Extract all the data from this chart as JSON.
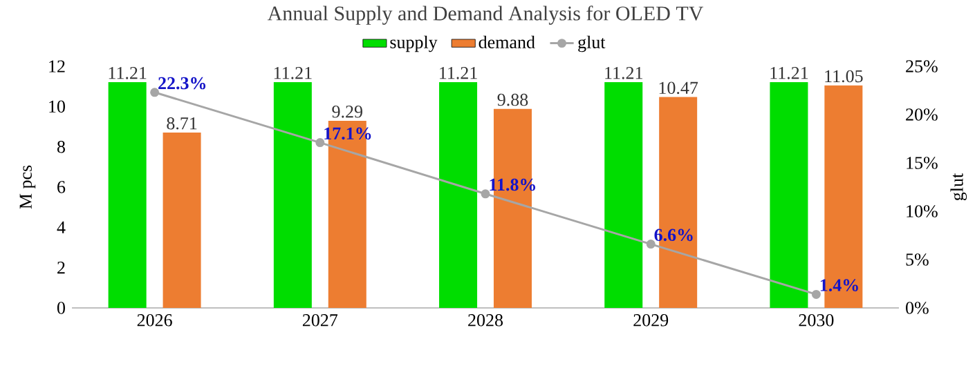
{
  "chart_data": {
    "type": "bar",
    "title": "Annual Supply and Demand Analysis for OLED TV",
    "categories": [
      "2026",
      "2027",
      "2028",
      "2029",
      "2030"
    ],
    "series": [
      {
        "name": "supply",
        "color": "#00dd00",
        "values": [
          11.21,
          11.21,
          11.21,
          11.21,
          11.21
        ],
        "value_labels": [
          "11.21",
          "11.21",
          "11.21",
          "11.21",
          "11.21"
        ]
      },
      {
        "name": "demand",
        "color": "#ed7d31",
        "values": [
          8.71,
          9.29,
          9.88,
          10.47,
          11.05
        ],
        "value_labels": [
          "8.71",
          "9.29",
          "9.88",
          "10.47",
          "11.05"
        ]
      },
      {
        "name": "glut",
        "type": "line",
        "axis": "y2",
        "color": "#a6a6a6",
        "marker": "circle",
        "values": [
          22.3,
          17.1,
          11.8,
          6.6,
          1.4
        ],
        "value_labels": [
          "22.3%",
          "17.1%",
          "11.8%",
          "6.6%",
          "1.4%"
        ]
      }
    ],
    "ylabel": "M pcs",
    "y2label": "glut",
    "ylim": [
      0,
      12
    ],
    "yticks": [
      0,
      2,
      4,
      6,
      8,
      10,
      12
    ],
    "y2lim": [
      0,
      25
    ],
    "y2ticks": [
      {
        "value": 0,
        "label": "0%"
      },
      {
        "value": 5,
        "label": "5%"
      },
      {
        "value": 10,
        "label": "10%"
      },
      {
        "value": 15,
        "label": "15%"
      },
      {
        "value": 20,
        "label": "20%"
      },
      {
        "value": 25,
        "label": "25%"
      }
    ],
    "legend": "top"
  }
}
